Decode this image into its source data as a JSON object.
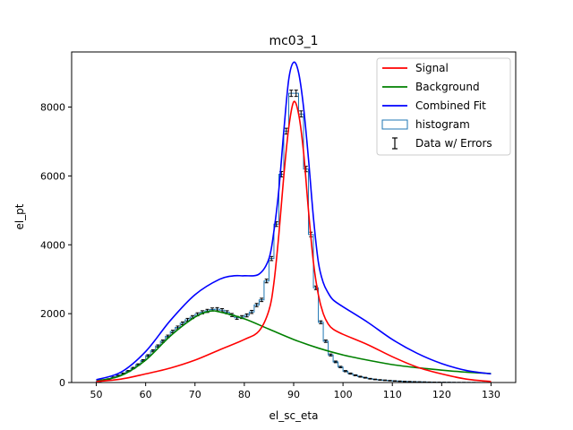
{
  "chart_data": {
    "type": "line",
    "title": "mc03_1",
    "xlabel": "el_sc_eta",
    "ylabel": "el_pt",
    "xlim": [
      45,
      135
    ],
    "ylim": [
      0,
      9600
    ],
    "grid": false,
    "legend_position": "top-right",
    "x_ticks": [
      50,
      60,
      70,
      80,
      90,
      100,
      110,
      120,
      130
    ],
    "y_ticks": [
      0,
      2000,
      4000,
      6000,
      8000
    ],
    "legend": [
      {
        "label": "Signal",
        "kind": "line",
        "color": "#ff0000"
      },
      {
        "label": "Background",
        "kind": "line",
        "color": "#008000"
      },
      {
        "label": "Combined Fit",
        "kind": "line",
        "color": "#0000ff"
      },
      {
        "label": "histogram",
        "kind": "box",
        "color": "#1f77b4"
      },
      {
        "label": "Data w/ Errors",
        "kind": "errorbar",
        "color": "#000000"
      }
    ],
    "series": [
      {
        "name": "Signal",
        "color": "#ff0000",
        "x": [
          50,
          55,
          60,
          65,
          70,
          75,
          80,
          83,
          85,
          86,
          87,
          88,
          89,
          90,
          91,
          92,
          93,
          94,
          95,
          96,
          97,
          98,
          100,
          105,
          110,
          115,
          120,
          125,
          130
        ],
        "y": [
          30,
          100,
          250,
          420,
          650,
          950,
          1250,
          1500,
          2100,
          2900,
          4300,
          6000,
          7400,
          8150,
          7800,
          6700,
          5000,
          3500,
          2550,
          2000,
          1700,
          1550,
          1400,
          1100,
          750,
          450,
          250,
          100,
          30
        ]
      },
      {
        "name": "Background",
        "color": "#008000",
        "x": [
          50,
          55,
          60,
          65,
          70,
          73,
          75,
          80,
          85,
          90,
          95,
          100,
          105,
          110,
          115,
          120,
          125,
          130
        ],
        "y": [
          50,
          200,
          650,
          1350,
          1900,
          2070,
          2050,
          1850,
          1550,
          1250,
          1000,
          800,
          650,
          520,
          430,
          360,
          300,
          260
        ]
      },
      {
        "name": "Combined Fit",
        "color": "#0000ff",
        "x": [
          50,
          55,
          60,
          65,
          70,
          75,
          78,
          80,
          83,
          85,
          86,
          87,
          88,
          89,
          90,
          91,
          92,
          93,
          94,
          95,
          96,
          97,
          98,
          100,
          105,
          110,
          115,
          120,
          125,
          130
        ],
        "y": [
          80,
          300,
          900,
          1800,
          2550,
          3000,
          3100,
          3100,
          3150,
          3600,
          4400,
          5600,
          7300,
          8800,
          9300,
          9000,
          8000,
          6500,
          4800,
          3500,
          2900,
          2600,
          2400,
          2200,
          1750,
          1250,
          850,
          550,
          350,
          250
        ]
      }
    ],
    "histogram": {
      "name": "histogram",
      "color": "#1f77b4",
      "bin_width": 1,
      "x": [
        50,
        51,
        52,
        53,
        54,
        55,
        56,
        57,
        58,
        59,
        60,
        61,
        62,
        63,
        64,
        65,
        66,
        67,
        68,
        69,
        70,
        71,
        72,
        73,
        74,
        75,
        76,
        77,
        78,
        79,
        80,
        81,
        82,
        83,
        84,
        85,
        86,
        87,
        88,
        89,
        90,
        91,
        92,
        93,
        94,
        95,
        96,
        97,
        98,
        99,
        100,
        101,
        102,
        103,
        104,
        105,
        106,
        107,
        108,
        109,
        110,
        111,
        112,
        113,
        114,
        115,
        116,
        117,
        118,
        119,
        120,
        121,
        122,
        123,
        124,
        125,
        126,
        127,
        128,
        129
      ],
      "y": [
        30,
        60,
        100,
        150,
        200,
        260,
        330,
        420,
        520,
        640,
        780,
        920,
        1060,
        1200,
        1340,
        1480,
        1600,
        1720,
        1820,
        1900,
        1980,
        2040,
        2080,
        2120,
        2130,
        2100,
        2040,
        1960,
        1880,
        1900,
        1950,
        2050,
        2250,
        2400,
        2950,
        3600,
        4600,
        6050,
        7300,
        8400,
        8400,
        7800,
        6200,
        4300,
        2750,
        1750,
        1200,
        800,
        600,
        450,
        330,
        260,
        210,
        170,
        140,
        110,
        90,
        75,
        65,
        55,
        45,
        38,
        32,
        27,
        22,
        18,
        15,
        12,
        10,
        8,
        6,
        5,
        4,
        3,
        3,
        2,
        2,
        1,
        1,
        1
      ]
    },
    "errorbars": {
      "name": "Data w/ Errors",
      "color": "#000000",
      "x": [
        50,
        51,
        52,
        53,
        54,
        55,
        56,
        57,
        58,
        59,
        60,
        61,
        62,
        63,
        64,
        65,
        66,
        67,
        68,
        69,
        70,
        71,
        72,
        73,
        74,
        75,
        76,
        77,
        78,
        79,
        80,
        81,
        82,
        83,
        84,
        85,
        86,
        87,
        88,
        89,
        90,
        91,
        92,
        93,
        94,
        95,
        96,
        97,
        98,
        99,
        100,
        101,
        102,
        103,
        104,
        105,
        106,
        107,
        108,
        109,
        110,
        111,
        112,
        113,
        114,
        115,
        116,
        117,
        118,
        119,
        120,
        121,
        122,
        123,
        124,
        125,
        126,
        127,
        128,
        129
      ],
      "y": [
        30,
        60,
        100,
        150,
        200,
        260,
        330,
        420,
        520,
        640,
        780,
        920,
        1060,
        1200,
        1340,
        1480,
        1600,
        1720,
        1820,
        1900,
        1980,
        2040,
        2080,
        2120,
        2130,
        2100,
        2040,
        1960,
        1880,
        1900,
        1950,
        2050,
        2250,
        2400,
        2950,
        3600,
        4600,
        6050,
        7300,
        8400,
        8400,
        7800,
        6200,
        4300,
        2750,
        1750,
        1200,
        800,
        600,
        450,
        330,
        260,
        210,
        170,
        140,
        110,
        90,
        75,
        65,
        55,
        45,
        38,
        32,
        27,
        22,
        18,
        15,
        12,
        10,
        8,
        6,
        5,
        4,
        3,
        3,
        2,
        2,
        1,
        1,
        1
      ]
    }
  }
}
